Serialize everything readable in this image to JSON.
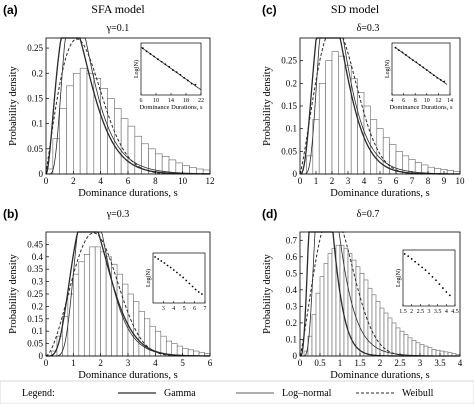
{
  "columns": {
    "left_title": "SFA model",
    "right_title": "SD model"
  },
  "legend": {
    "label": "Legend:",
    "entries": [
      {
        "name": "Gamma",
        "style": "solid"
      },
      {
        "name": "Log–normal",
        "style": "solid-thin"
      },
      {
        "name": "Weibull",
        "style": "dashed"
      }
    ]
  },
  "colors": {
    "curve": "#2a2a2a",
    "hist": "#666666",
    "fill": "#ffffff"
  },
  "chart_data": [
    {
      "id": "a",
      "panel_label": "(a)",
      "param_label": "γ=0.1",
      "type": "bar",
      "xlabel": "Dominance durations, s",
      "ylabel": "Probability density",
      "xlim": [
        0,
        12
      ],
      "ylim": [
        0,
        0.27
      ],
      "xticks": [
        0,
        2,
        4,
        6,
        8,
        10,
        12
      ],
      "yticks": [
        0,
        0.05,
        0.1,
        0.15,
        0.2,
        0.25
      ],
      "bin_width": 0.5,
      "values": [
        0.01,
        0.07,
        0.13,
        0.175,
        0.2,
        0.21,
        0.2,
        0.19,
        0.17,
        0.15,
        0.13,
        0.11,
        0.095,
        0.075,
        0.06,
        0.05,
        0.04,
        0.035,
        0.028,
        0.022,
        0.017,
        0.013,
        0.01,
        0.008
      ],
      "series": [
        {
          "name": "Gamma",
          "dist": "gamma",
          "params": [
            3.0,
            0.85
          ]
        },
        {
          "name": "Log–normal",
          "dist": "lognormal",
          "params": [
            0.95,
            0.5
          ]
        },
        {
          "name": "Weibull",
          "dist": "weibull",
          "params": [
            2.0,
            3.2
          ]
        }
      ],
      "inset": {
        "xlabel": "Dominance Durations, s",
        "ylabel": "Log(N)",
        "xlim": [
          6,
          22
        ],
        "ylim": [
          0,
          10
        ],
        "xticks": [
          6,
          10,
          14,
          18,
          22
        ],
        "yticks": [],
        "line": [
          [
            6,
            9.2
          ],
          [
            22,
            1.0
          ]
        ],
        "points": [
          [
            6.5,
            9
          ],
          [
            7.5,
            8.4
          ],
          [
            8.5,
            7.9
          ],
          [
            9.5,
            7.4
          ],
          [
            10.5,
            6.9
          ],
          [
            11.5,
            6.4
          ],
          [
            12.5,
            5.9
          ],
          [
            13.5,
            5.4
          ],
          [
            14.5,
            4.8
          ],
          [
            15.5,
            4.4
          ],
          [
            16.5,
            3.9
          ],
          [
            17.5,
            3.3
          ],
          [
            18.5,
            2.8
          ],
          [
            19.5,
            2.2
          ],
          [
            20.5,
            2.0
          ]
        ]
      }
    },
    {
      "id": "b",
      "panel_label": "(b)",
      "param_label": "γ=0.3",
      "type": "bar",
      "xlabel": "Dominance durations, s",
      "ylabel": "Probability density",
      "xlim": [
        0,
        6
      ],
      "ylim": [
        0,
        0.5
      ],
      "xticks": [
        0,
        1,
        2,
        3,
        4,
        5,
        6
      ],
      "yticks": [
        0,
        0.05,
        0.1,
        0.15,
        0.2,
        0.25,
        0.3,
        0.35,
        0.4,
        0.45
      ],
      "bin_width": 0.2,
      "values": [
        0,
        0.02,
        0.08,
        0.16,
        0.25,
        0.33,
        0.38,
        0.41,
        0.44,
        0.44,
        0.42,
        0.4,
        0.37,
        0.33,
        0.29,
        0.25,
        0.22,
        0.18,
        0.15,
        0.12,
        0.1,
        0.08,
        0.06,
        0.05,
        0.04,
        0.03,
        0.025,
        0.02,
        0.015,
        0.01
      ],
      "series": [
        {
          "name": "Gamma",
          "dist": "gamma",
          "params": [
            6.0,
            0.3
          ]
        },
        {
          "name": "Log–normal",
          "dist": "lognormal",
          "params": [
            0.55,
            0.35
          ]
        },
        {
          "name": "Weibull",
          "dist": "weibull",
          "params": [
            2.6,
            2.1
          ]
        }
      ],
      "inset": {
        "xlabel": "",
        "ylabel": "Log(N)",
        "xlim": [
          2,
          7
        ],
        "ylim": [
          0,
          10
        ],
        "xticks": [
          3,
          4,
          5,
          6,
          7
        ],
        "yticks": [],
        "line": [],
        "points": [
          [
            2.2,
            9.2
          ],
          [
            2.5,
            8.8
          ],
          [
            2.8,
            8.4
          ],
          [
            3.1,
            8.0
          ],
          [
            3.4,
            7.5
          ],
          [
            3.7,
            7.1
          ],
          [
            4.0,
            6.6
          ],
          [
            4.3,
            6.1
          ],
          [
            4.6,
            5.6
          ],
          [
            4.9,
            5.1
          ],
          [
            5.2,
            4.5
          ],
          [
            5.5,
            3.9
          ],
          [
            5.8,
            3.3
          ],
          [
            6.1,
            2.7
          ],
          [
            6.4,
            2.2
          ],
          [
            6.7,
            1.8
          ]
        ]
      }
    },
    {
      "id": "c",
      "panel_label": "(c)",
      "param_label": "δ=0.3",
      "type": "bar",
      "xlabel": "Dominance durations, s",
      "ylabel": "Probability density",
      "xlim": [
        0,
        10
      ],
      "ylim": [
        0,
        0.3
      ],
      "xticks": [
        0,
        1,
        2,
        3,
        4,
        5,
        6,
        7,
        8,
        9,
        10
      ],
      "yticks": [
        0,
        0.05,
        0.1,
        0.15,
        0.2,
        0.25
      ],
      "bin_width": 0.4,
      "values": [
        0,
        0.04,
        0.12,
        0.2,
        0.25,
        0.27,
        0.26,
        0.24,
        0.21,
        0.18,
        0.15,
        0.12,
        0.1,
        0.08,
        0.065,
        0.05,
        0.04,
        0.032,
        0.025,
        0.02,
        0.015,
        0.012,
        0.01,
        0.008,
        0.006
      ],
      "series": [
        {
          "name": "Gamma",
          "dist": "gamma",
          "params": [
            4.0,
            0.55
          ]
        },
        {
          "name": "Log–normal",
          "dist": "lognormal",
          "params": [
            0.8,
            0.45
          ]
        },
        {
          "name": "Weibull",
          "dist": "weibull",
          "params": [
            2.2,
            2.8
          ]
        }
      ],
      "inset": {
        "xlabel": "Dominance Durations, s",
        "ylabel": "Log(N)",
        "xlim": [
          4,
          14
        ],
        "ylim": [
          0,
          10
        ],
        "xticks": [
          4,
          6,
          8,
          10,
          12,
          14
        ],
        "yticks": [],
        "line": [
          [
            4.5,
            9.2
          ],
          [
            13.5,
            2.0
          ]
        ],
        "points": [
          [
            4.6,
            9.1
          ],
          [
            5.2,
            8.6
          ],
          [
            5.8,
            8.2
          ],
          [
            6.4,
            7.7
          ],
          [
            7.0,
            7.2
          ],
          [
            7.6,
            6.7
          ],
          [
            8.2,
            6.3
          ],
          [
            8.8,
            5.8
          ],
          [
            9.4,
            5.3
          ],
          [
            10.0,
            4.8
          ],
          [
            10.6,
            4.3
          ],
          [
            11.2,
            3.8
          ],
          [
            11.8,
            3.3
          ],
          [
            12.4,
            2.9
          ],
          [
            13.0,
            2.6
          ]
        ]
      }
    },
    {
      "id": "d",
      "panel_label": "(d)",
      "param_label": "δ=0.7",
      "type": "bar",
      "xlabel": "Dominance durations, s",
      "ylabel": "Probability density",
      "xlim": [
        0,
        4
      ],
      "ylim": [
        0,
        0.75
      ],
      "xticks": [
        0,
        0.5,
        1,
        1.5,
        2,
        2.5,
        3,
        3.5,
        4
      ],
      "yticks": [
        0,
        0.1,
        0.2,
        0.3,
        0.4,
        0.5,
        0.6,
        0.7
      ],
      "bin_width": 0.1,
      "values": [
        0,
        0.03,
        0.12,
        0.25,
        0.38,
        0.48,
        0.56,
        0.62,
        0.65,
        0.67,
        0.67,
        0.65,
        0.62,
        0.58,
        0.54,
        0.5,
        0.46,
        0.41,
        0.37,
        0.33,
        0.29,
        0.26,
        0.23,
        0.2,
        0.17,
        0.15,
        0.13,
        0.11,
        0.095,
        0.08,
        0.07,
        0.06,
        0.05,
        0.04,
        0.035,
        0.03,
        0.025,
        0.02,
        0.015,
        0.01
      ],
      "series": [
        {
          "name": "Gamma",
          "dist": "gamma",
          "params": [
            4.5,
            0.13
          ]
        },
        {
          "name": "Log–normal",
          "dist": "lognormal",
          "params": [
            -0.3,
            0.45
          ]
        },
        {
          "name": "Weibull",
          "dist": "weibull",
          "params": [
            2.2,
            1.05
          ]
        }
      ],
      "inset": {
        "xlabel": "",
        "ylabel": "Log(N)",
        "xlim": [
          1.5,
          4.5
        ],
        "ylim": [
          0,
          10
        ],
        "xticks": [
          1.5,
          2,
          2.5,
          3,
          3.5,
          4,
          4.5
        ],
        "yticks": [],
        "line": [],
        "points": [
          [
            1.6,
            9.3
          ],
          [
            1.8,
            8.9
          ],
          [
            2.0,
            8.4
          ],
          [
            2.2,
            7.9
          ],
          [
            2.4,
            7.4
          ],
          [
            2.6,
            6.9
          ],
          [
            2.8,
            6.4
          ],
          [
            3.0,
            5.8
          ],
          [
            3.2,
            5.2
          ],
          [
            3.4,
            4.6
          ],
          [
            3.6,
            3.9
          ],
          [
            3.8,
            3.2
          ],
          [
            4.0,
            2.5
          ],
          [
            4.2,
            1.9
          ]
        ]
      }
    }
  ]
}
